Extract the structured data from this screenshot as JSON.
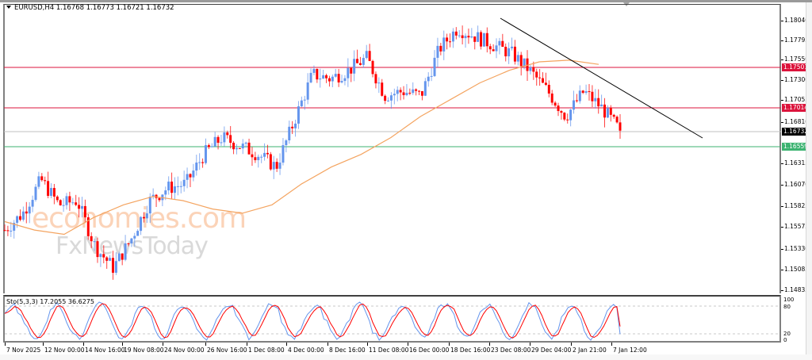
{
  "window": {
    "symbol": "EURUSD",
    "timeframe": "H4",
    "title": "EURUSD,H4  1.16768 1.16773 1.16721 1.16732",
    "ohlc": {
      "open": "1.16768",
      "high": "1.16773",
      "low": "1.16721",
      "close": "1.16732"
    }
  },
  "indicator": {
    "title": "Sto(5,3,3) 17.2055 36.6275",
    "name": "Sto(5,3,3)",
    "main_value": "17.2055",
    "signal_value": "36.6275",
    "levels": [
      "100",
      "80",
      "20",
      "0"
    ]
  },
  "watermark": {
    "line1": "economies.com",
    "line2": "FxNewsToday"
  },
  "price_axis": {
    "labels": [
      "1.18040",
      "1.17795",
      "1.17550",
      "1.17300",
      "1.17055",
      "1.16810",
      "1.16315",
      "1.16070",
      "1.15825",
      "1.15575",
      "1.15330",
      "1.15085",
      "1.14835"
    ]
  },
  "price_tags": {
    "resistance_upper": "1.17501",
    "resistance_lower": "1.17014",
    "current_price": "1.16732",
    "support": "1.16559"
  },
  "time_axis": {
    "labels": [
      "7 Nov 2025",
      "12 Nov 00:00",
      "14 Nov 16:00",
      "19 Nov 08:00",
      "24 Nov 00:00",
      "26 Nov 16:00",
      "1 Dec 08:00",
      "4 Dec 00:00",
      "8 Dec 16:00",
      "11 Dec 08:00",
      "16 Dec 00:00",
      "18 Dec 16:00",
      "23 Dec 08:00",
      "29 Dec 04:00",
      "2 Jan 21:00",
      "7 Jan 12:00"
    ]
  },
  "colors": {
    "bull_candle": "#6495ED",
    "bear_candle": "#FF0000",
    "resistance_line": "#DC143C",
    "support_line": "#3CB371",
    "current_price_line": "#C0C0C0",
    "moving_average": "#F4A460",
    "trendline": "#000000",
    "stoch_main": "#6495ED",
    "stoch_signal": "#FF0000",
    "watermark_orange": "#FBD3B8",
    "watermark_gray": "#D9D9D9"
  },
  "chart_data": {
    "type": "candlestick",
    "title": "EURUSD,H4",
    "xlabel": "",
    "ylabel": "",
    "ylim": [
      1.1475,
      1.1815
    ],
    "grid": false,
    "x_ticks": [
      "7 Nov 2025",
      "12 Nov 00:00",
      "14 Nov 16:00",
      "19 Nov 08:00",
      "24 Nov 00:00",
      "26 Nov 16:00",
      "1 Dec 08:00",
      "4 Dec 00:00",
      "8 Dec 16:00",
      "11 Dec 08:00",
      "16 Dec 00:00",
      "18 Dec 16:00",
      "23 Dec 08:00",
      "29 Dec 04:00",
      "2 Jan 21:00",
      "7 Jan 12:00"
    ],
    "y_ticks": [
      1.1804,
      1.17795,
      1.1755,
      1.173,
      1.17055,
      1.1681,
      1.16315,
      1.1607,
      1.15825,
      1.15575,
      1.1533,
      1.15085,
      1.14835
    ],
    "horizontal_lines": [
      {
        "name": "resistance 1",
        "value": 1.17501,
        "color": "#DC143C"
      },
      {
        "name": "resistance 2",
        "value": 1.17014,
        "color": "#DC143C"
      },
      {
        "name": "current price",
        "value": 1.16732,
        "color": "#C0C0C0"
      },
      {
        "name": "support",
        "value": 1.16559,
        "color": "#3CB371"
      }
    ],
    "trendline": {
      "from": {
        "date": "23 Dec 08:00",
        "price": 1.1808
      },
      "to": {
        "date": "after 7 Jan 12:00",
        "price": 1.1665
      },
      "color": "#000000"
    },
    "approx_close_path": {
      "dates": [
        "7 Nov",
        "10 Nov",
        "12 Nov",
        "14 Nov",
        "17 Nov",
        "19 Nov",
        "21 Nov",
        "24 Nov",
        "26 Nov",
        "28 Nov",
        "1 Dec",
        "3 Dec",
        "4 Dec",
        "5 Dec",
        "8 Dec",
        "9 Dec",
        "10 Dec",
        "11 Dec",
        "12 Dec",
        "15 Dec",
        "16 Dec",
        "17 Dec",
        "18 Dec",
        "19 Dec",
        "22 Dec",
        "23 Dec",
        "24 Dec",
        "26 Dec",
        "29 Dec",
        "30 Dec",
        "31 Dec",
        "2 Jan",
        "5 Jan",
        "6 Jan",
        "7 Jan"
      ],
      "close": [
        1.1555,
        1.1575,
        1.1615,
        1.1585,
        1.159,
        1.1535,
        1.151,
        1.1545,
        1.159,
        1.1605,
        1.161,
        1.1645,
        1.1665,
        1.1655,
        1.1645,
        1.163,
        1.1685,
        1.174,
        1.1735,
        1.1745,
        1.176,
        1.1715,
        1.172,
        1.1715,
        1.177,
        1.1795,
        1.1785,
        1.1775,
        1.1765,
        1.1745,
        1.172,
        1.169,
        1.172,
        1.17,
        1.1673
      ]
    },
    "series": [
      {
        "name": "EURUSD H4 price",
        "type": "candlestick"
      },
      {
        "name": "Moving Average",
        "type": "line",
        "color": "#F4A460",
        "approx_values": [
          1.1565,
          1.1555,
          1.155,
          1.157,
          1.1585,
          1.1595,
          1.159,
          1.158,
          1.1575,
          1.1585,
          1.161,
          1.163,
          1.1645,
          1.1665,
          1.169,
          1.171,
          1.173,
          1.1745,
          1.1755,
          1.1757,
          1.1752
        ]
      }
    ],
    "indicator_panel": {
      "type": "line",
      "title": "Sto(5,3,3) 17.2055 36.6275",
      "ylim": [
        0,
        100
      ],
      "levels": [
        20,
        80
      ],
      "series": [
        {
          "name": "%K",
          "color": "#6495ED",
          "last": 17.2055
        },
        {
          "name": "%D",
          "color": "#FF0000",
          "last": 36.6275
        }
      ]
    }
  }
}
